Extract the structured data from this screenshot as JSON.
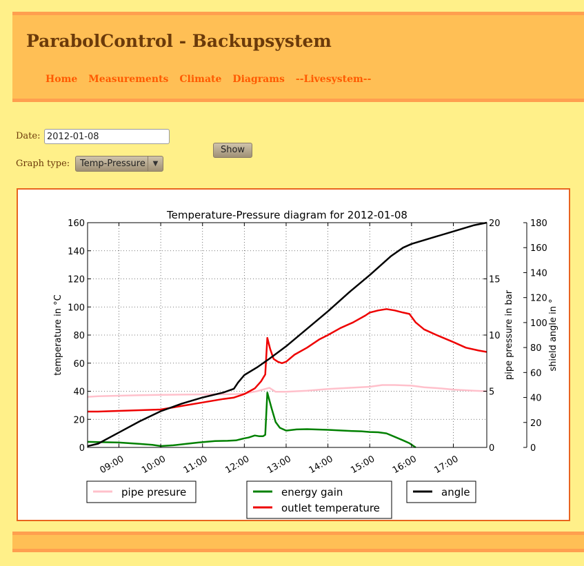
{
  "header": {
    "title": "ParabolControl - Backupsystem",
    "nav": [
      "Home",
      "Measurements",
      "Climate",
      "Diagrams",
      "--Livesystem--"
    ]
  },
  "form": {
    "date_label": "Date:",
    "date_value": "2012-01-08",
    "graph_type_label": "Graph type:",
    "graph_type_value": "Temp-Pressure",
    "show_label": "Show"
  },
  "chart_data": {
    "type": "line",
    "title": "Temperature-Pressure diagram for 2012-01-08",
    "xlim": [
      8.25,
      17.8
    ],
    "x_ticks": [
      9,
      10,
      11,
      12,
      13,
      14,
      15,
      16,
      17
    ],
    "x_tick_labels": [
      "09:00",
      "10:00",
      "11:00",
      "12:00",
      "13:00",
      "14:00",
      "15:00",
      "16:00",
      "17:00"
    ],
    "grid": true,
    "legend_placement": "bottom",
    "axes": {
      "left": {
        "label": "temperature in °C",
        "ylim": [
          0,
          160
        ],
        "ticks": [
          0,
          20,
          40,
          60,
          80,
          100,
          120,
          140,
          160
        ]
      },
      "right1": {
        "label": "pipe pressure in bar",
        "ylim": [
          0,
          20
        ],
        "ticks": [
          0,
          5,
          10,
          15,
          20
        ]
      },
      "right2": {
        "label": "shield angle in °",
        "ylim": [
          0,
          180
        ],
        "ticks": [
          0,
          20,
          40,
          60,
          80,
          100,
          120,
          140,
          160,
          180
        ]
      }
    },
    "series": [
      {
        "name": "pipe presure",
        "axis": "right1",
        "color": "#ffc0cb",
        "x": [
          8.25,
          8.5,
          9.0,
          9.5,
          10.0,
          10.5,
          11.0,
          11.5,
          11.8,
          12.0,
          12.3,
          12.5,
          12.6,
          12.75,
          13.0,
          13.5,
          14.0,
          14.5,
          15.0,
          15.3,
          15.6,
          16.0,
          16.3,
          16.7,
          17.0,
          17.5,
          17.8
        ],
        "values": [
          4.5,
          4.55,
          4.6,
          4.65,
          4.68,
          4.7,
          4.72,
          4.73,
          4.74,
          4.8,
          5.0,
          5.2,
          5.3,
          4.95,
          4.95,
          5.05,
          5.2,
          5.3,
          5.4,
          5.55,
          5.55,
          5.5,
          5.35,
          5.25,
          5.15,
          5.05,
          5.0
        ]
      },
      {
        "name": "energy gain",
        "axis": "left",
        "color": "#008000",
        "x": [
          8.25,
          8.5,
          9.0,
          9.5,
          9.8,
          10.0,
          10.3,
          10.6,
          10.9,
          11.3,
          11.6,
          11.8,
          12.0,
          12.1,
          12.25,
          12.35,
          12.45,
          12.5,
          12.55,
          12.65,
          12.75,
          12.85,
          13.0,
          13.25,
          13.5,
          14.0,
          14.5,
          14.8,
          15.0,
          15.2,
          15.4,
          15.6,
          15.8,
          15.95,
          16.1
        ],
        "values": [
          4,
          3.8,
          3.5,
          2.5,
          1.8,
          1.0,
          1.5,
          2.5,
          3.5,
          4.5,
          4.7,
          5.0,
          6.5,
          7.0,
          8.5,
          8.0,
          8.0,
          9.0,
          39,
          28,
          18,
          14,
          12,
          12.8,
          13,
          12.5,
          11.8,
          11.5,
          11,
          10.8,
          10,
          7.5,
          5.0,
          3.0,
          0
        ]
      },
      {
        "name": "outlet temperature",
        "axis": "left",
        "color": "#ee0000",
        "x": [
          8.25,
          8.5,
          9.0,
          9.5,
          10.0,
          10.5,
          11.0,
          11.5,
          11.75,
          12.0,
          12.25,
          12.4,
          12.5,
          12.55,
          12.62,
          12.7,
          12.8,
          12.9,
          13.0,
          13.2,
          13.5,
          13.8,
          14.0,
          14.3,
          14.6,
          14.9,
          15.0,
          15.2,
          15.4,
          15.6,
          15.8,
          15.95,
          16.1,
          16.3,
          16.6,
          17.0,
          17.3,
          17.6,
          17.8
        ],
        "values": [
          25.5,
          25.5,
          26,
          26.5,
          27,
          29.5,
          32,
          34.5,
          35.5,
          38,
          42,
          47,
          52,
          78,
          70,
          63,
          61,
          60,
          61,
          66,
          71,
          77,
          80,
          85,
          89,
          94,
          96,
          97.5,
          98.5,
          97.5,
          96,
          95,
          89,
          84,
          80,
          75,
          71,
          69,
          68
        ]
      },
      {
        "name": "angle",
        "axis": "right2",
        "color": "#000000",
        "x": [
          8.25,
          8.5,
          9.0,
          9.5,
          10.0,
          10.5,
          11.0,
          11.5,
          11.75,
          11.85,
          12.0,
          12.3,
          12.6,
          13.0,
          13.5,
          14.0,
          14.5,
          15.0,
          15.5,
          15.8,
          16.0,
          16.5,
          17.0,
          17.5,
          17.8
        ],
        "values": [
          1,
          3,
          12,
          21,
          29,
          35,
          40,
          44,
          47,
          52,
          58,
          64,
          71,
          81,
          95,
          109,
          124,
          138,
          153,
          160,
          163,
          168,
          173,
          178,
          180
        ]
      }
    ],
    "legend_groups": [
      [
        "pipe presure"
      ],
      [
        "energy gain",
        "outlet temperature"
      ],
      [
        "angle"
      ]
    ]
  }
}
